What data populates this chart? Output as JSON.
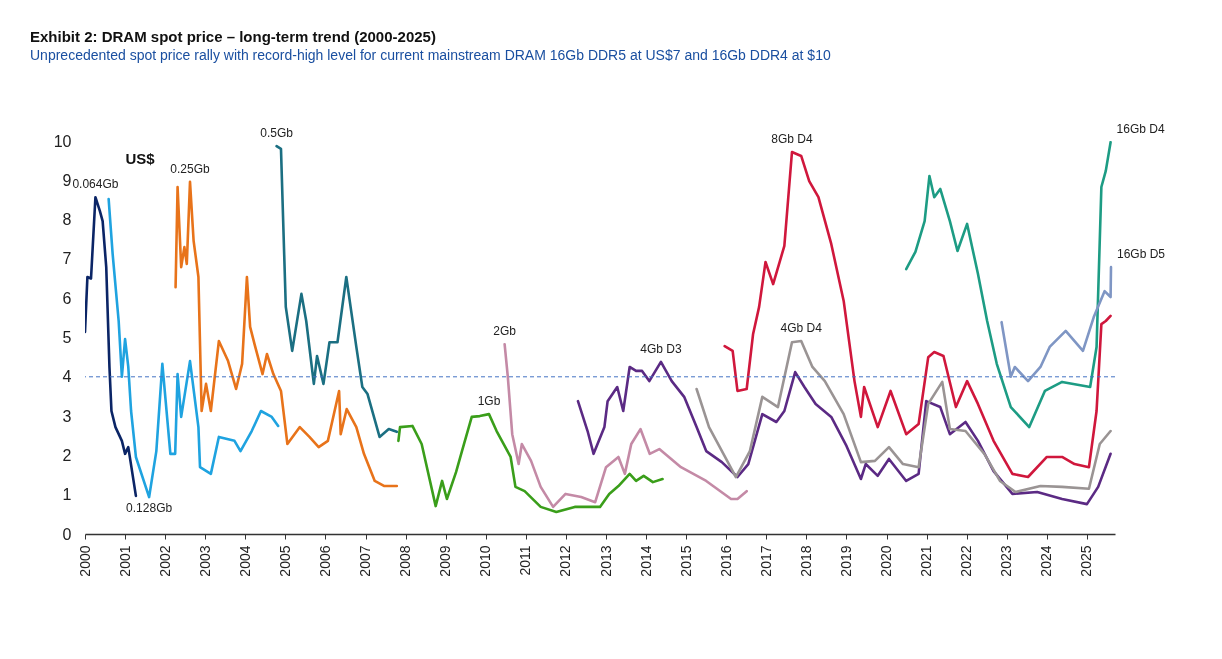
{
  "chart_data": {
    "type": "line",
    "title": "Exhibit 2: DRAM spot price – long-term trend (2000-2025)",
    "subtitle": "Unprecedented spot price rally with record-high level for current mainstream DRAM 16Gb DDR5 at US$7 and 16Gb DDR4 at $10",
    "ylabel": "US$",
    "xlim": [
      2000,
      2025.7
    ],
    "xticks": [
      2000,
      2001,
      2002,
      2003,
      2004,
      2005,
      2006,
      2007,
      2008,
      2009,
      2010,
      2011,
      2012,
      2013,
      2014,
      2015,
      2016,
      2017,
      2018,
      2019,
      2020,
      2021,
      2022,
      2023,
      2024,
      2025
    ],
    "ylim": [
      0,
      10
    ],
    "yticks": [
      0,
      1,
      2,
      3,
      4,
      5,
      6,
      7,
      8,
      9,
      10
    ],
    "grid": false,
    "line_style": "solid",
    "marker": "none",
    "ref_lines": [
      {
        "axis": "y",
        "value": 4,
        "color": "#4472c4",
        "line_style": "dashed"
      }
    ],
    "series": [
      {
        "name": "0.064Gb",
        "color": "#0b2566",
        "x": [
          2000.0,
          2000.06,
          2000.15,
          2000.26,
          2000.37,
          2000.44,
          2000.53,
          2000.61,
          2000.66,
          2000.76,
          2000.92,
          2001.0,
          2001.08,
          2001.27
        ],
        "values": [
          5.14,
          6.54,
          6.5,
          8.57,
          8.22,
          7.96,
          6.79,
          4.25,
          3.13,
          2.72,
          2.37,
          2.04,
          2.21,
          0.97
        ]
      },
      {
        "name": "0.128Gb",
        "color": "#1fa3e0",
        "x": [
          2000.59,
          2000.69,
          2000.84,
          2000.92,
          2001.0,
          2001.08,
          2001.15,
          2001.27,
          2001.6,
          2001.78,
          2001.93,
          2002.13,
          2002.25,
          2002.31,
          2002.4,
          2002.62,
          2002.83,
          2002.87,
          2003.14,
          2003.34,
          2003.73,
          2003.88,
          2004.16,
          2004.39,
          2004.66,
          2004.82
        ],
        "values": [
          8.52,
          7.12,
          5.42,
          4.0,
          4.96,
          4.25,
          3.13,
          1.96,
          0.94,
          2.11,
          4.33,
          2.04,
          2.04,
          4.07,
          2.98,
          4.4,
          2.72,
          1.7,
          1.53,
          2.47,
          2.37,
          2.11,
          2.62,
          3.13,
          2.98,
          2.75
        ]
      },
      {
        "name": "0.25Gb",
        "color": "#e8731a",
        "x": [
          2002.26,
          2002.31,
          2002.4,
          2002.48,
          2002.54,
          2002.62,
          2002.71,
          2002.83,
          2002.91,
          2003.02,
          2003.14,
          2003.34,
          2003.57,
          2003.77,
          2003.92,
          2004.04,
          2004.12,
          2004.23,
          2004.43,
          2004.54,
          2004.7,
          2004.89,
          2005.05,
          2005.36,
          2005.6,
          2005.83,
          2006.06,
          2006.34,
          2006.38,
          2006.53,
          2006.77,
          2006.96,
          2007.23,
          2007.47,
          2007.78
        ],
        "values": [
          6.28,
          8.83,
          6.79,
          7.3,
          6.87,
          8.96,
          7.46,
          6.54,
          3.13,
          3.82,
          3.13,
          4.91,
          4.4,
          3.69,
          4.33,
          6.54,
          5.27,
          4.83,
          4.07,
          4.58,
          4.07,
          3.64,
          2.29,
          2.72,
          2.47,
          2.21,
          2.37,
          3.64,
          2.54,
          3.18,
          2.72,
          2.04,
          1.35,
          1.22,
          1.22
        ]
      },
      {
        "name": "0.5Gb",
        "color": "#1b6f82",
        "x": [
          2004.78,
          2004.89,
          2005.01,
          2005.17,
          2005.4,
          2005.52,
          2005.71,
          2005.79,
          2005.95,
          2006.1,
          2006.3,
          2006.52,
          2006.77,
          2006.92,
          2007.05,
          2007.35,
          2007.58,
          2007.78
        ],
        "values": [
          9.87,
          9.8,
          5.78,
          4.66,
          6.11,
          5.42,
          3.82,
          4.53,
          3.82,
          4.88,
          4.88,
          6.54,
          4.76,
          3.74,
          3.56,
          2.47,
          2.67,
          2.6
        ]
      },
      {
        "name": "1Gb",
        "color": "#3a9e1a",
        "x": [
          2007.82,
          2007.86,
          2008.17,
          2008.4,
          2008.75,
          2008.91,
          2009.03,
          2009.26,
          2009.42,
          2009.65,
          2009.85,
          2010.08,
          2010.27,
          2010.62,
          2010.74,
          2010.97,
          2011.37,
          2011.76,
          2012.22,
          2012.85,
          2013.08,
          2013.31,
          2013.59,
          2013.75,
          2013.94,
          2014.17,
          2014.41
        ],
        "values": [
          2.37,
          2.72,
          2.75,
          2.29,
          0.71,
          1.35,
          0.89,
          1.58,
          2.16,
          2.98,
          3.0,
          3.05,
          2.62,
          1.96,
          1.2,
          1.09,
          0.69,
          0.56,
          0.69,
          0.69,
          1.02,
          1.22,
          1.53,
          1.35,
          1.48,
          1.32,
          1.4
        ]
      },
      {
        "name": "2Gb",
        "color": "#c48aa6",
        "x": [
          2010.47,
          2010.55,
          2010.66,
          2010.82,
          2010.9,
          2011.13,
          2011.37,
          2011.68,
          2011.99,
          2012.38,
          2012.73,
          2013.0,
          2013.31,
          2013.47,
          2013.63,
          2013.86,
          2014.09,
          2014.33,
          2014.87,
          2015.5,
          2016.12,
          2016.28,
          2016.51
        ],
        "values": [
          4.83,
          4.0,
          2.54,
          1.78,
          2.29,
          1.86,
          1.2,
          0.69,
          1.02,
          0.94,
          0.81,
          1.7,
          1.96,
          1.53,
          2.29,
          2.67,
          2.04,
          2.16,
          1.7,
          1.35,
          0.89,
          0.89,
          1.09
        ]
      },
      {
        "name": "4Gb D3",
        "color": "#5b2a84",
        "x": [
          2012.3,
          2012.54,
          2012.69,
          2012.96,
          2013.04,
          2013.28,
          2013.43,
          2013.59,
          2013.75,
          2013.9,
          2014.08,
          2014.37,
          2014.64,
          2014.95,
          2015.26,
          2015.5,
          2015.89,
          2016.28,
          2016.55,
          2016.9,
          2017.25,
          2017.45,
          2017.72,
          2017.95,
          2018.23,
          2018.62,
          2019.0,
          2019.36,
          2019.48,
          2019.78,
          2020.06,
          2020.49,
          2020.8,
          2020.99,
          2021.34,
          2021.58,
          2021.97,
          2022.28,
          2022.67,
          2023.14,
          2023.76,
          2024.38,
          2025.0,
          2025.28,
          2025.59
        ],
        "values": [
          3.38,
          2.62,
          2.04,
          2.72,
          3.38,
          3.74,
          3.13,
          4.25,
          4.15,
          4.15,
          3.89,
          4.38,
          3.89,
          3.49,
          2.72,
          2.11,
          1.83,
          1.45,
          1.78,
          3.05,
          2.85,
          3.13,
          4.12,
          3.74,
          3.31,
          2.98,
          2.24,
          1.4,
          1.78,
          1.48,
          1.91,
          1.35,
          1.53,
          3.38,
          3.23,
          2.54,
          2.85,
          2.37,
          1.6,
          1.02,
          1.07,
          0.89,
          0.76,
          1.2,
          2.04
        ]
      },
      {
        "name": "4Gb D4",
        "color": "#9a9494",
        "x": [
          2015.26,
          2015.57,
          2015.96,
          2016.24,
          2016.59,
          2016.9,
          2017.29,
          2017.64,
          2017.87,
          2018.15,
          2018.46,
          2018.93,
          2019.36,
          2019.71,
          2020.06,
          2020.41,
          2020.8,
          2021.04,
          2021.39,
          2021.58,
          2021.97,
          2022.44,
          2022.83,
          2023.22,
          2023.84,
          2024.38,
          2025.05,
          2025.32,
          2025.59
        ],
        "values": [
          3.69,
          2.72,
          1.98,
          1.45,
          2.11,
          3.49,
          3.23,
          4.88,
          4.91,
          4.25,
          3.89,
          3.05,
          1.83,
          1.86,
          2.21,
          1.78,
          1.7,
          3.31,
          3.87,
          2.67,
          2.62,
          2.04,
          1.35,
          1.07,
          1.22,
          1.2,
          1.15,
          2.29,
          2.62
        ]
      },
      {
        "name": "8Gb D4",
        "color": "#d0173c",
        "x": [
          2015.96,
          2016.16,
          2016.28,
          2016.51,
          2016.67,
          2016.82,
          2016.98,
          2017.17,
          2017.45,
          2017.64,
          2017.87,
          2018.07,
          2018.3,
          2018.62,
          2018.93,
          2019.2,
          2019.36,
          2019.44,
          2019.78,
          2020.1,
          2020.49,
          2020.8,
          2021.04,
          2021.19,
          2021.42,
          2021.73,
          2022.01,
          2022.28,
          2022.67,
          2023.14,
          2023.53,
          2024.0,
          2024.38,
          2024.69,
          2025.05,
          2025.24,
          2025.36,
          2025.47,
          2025.59
        ],
        "values": [
          4.78,
          4.66,
          3.64,
          3.69,
          5.09,
          5.78,
          6.92,
          6.36,
          7.33,
          9.72,
          9.62,
          8.98,
          8.57,
          7.38,
          5.93,
          3.89,
          2.98,
          3.74,
          2.72,
          3.64,
          2.54,
          2.8,
          4.5,
          4.63,
          4.53,
          3.23,
          3.89,
          3.31,
          2.37,
          1.53,
          1.45,
          1.96,
          1.96,
          1.78,
          1.7,
          3.13,
          5.34,
          5.42,
          5.55
        ]
      },
      {
        "name": "16Gb D4",
        "color": "#1d9c84",
        "x": [
          2020.49,
          2020.72,
          2020.95,
          2021.07,
          2021.19,
          2021.34,
          2021.58,
          2021.77,
          2022.01,
          2022.28,
          2022.51,
          2022.75,
          2023.1,
          2023.56,
          2023.95,
          2024.38,
          2025.08,
          2025.24,
          2025.36,
          2025.47,
          2025.59
        ],
        "values": [
          6.74,
          7.18,
          7.96,
          9.11,
          8.57,
          8.78,
          7.96,
          7.2,
          7.89,
          6.62,
          5.42,
          4.33,
          3.23,
          2.72,
          3.64,
          3.87,
          3.74,
          4.76,
          8.83,
          9.24,
          9.97
        ]
      },
      {
        "name": "16Gb D5",
        "color": "#7f96c4",
        "x": [
          2022.87,
          2023.1,
          2023.2,
          2023.53,
          2023.84,
          2024.07,
          2024.47,
          2024.9,
          2025.17,
          2025.44,
          2025.59,
          2025.6
        ],
        "values": [
          5.39,
          4.0,
          4.25,
          3.89,
          4.25,
          4.76,
          5.17,
          4.66,
          5.52,
          6.18,
          6.03,
          6.79
        ]
      }
    ]
  }
}
